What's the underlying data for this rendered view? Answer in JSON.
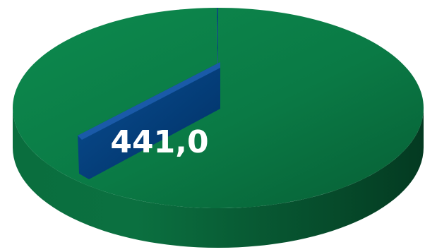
{
  "chart_data": {
    "type": "pie",
    "style": "3d",
    "values": [
      441.0,
      0.4
    ],
    "labels": [
      "441,0",
      ""
    ],
    "colors": [
      "#0a7a45",
      "#003f7d"
    ],
    "legend": "none"
  }
}
